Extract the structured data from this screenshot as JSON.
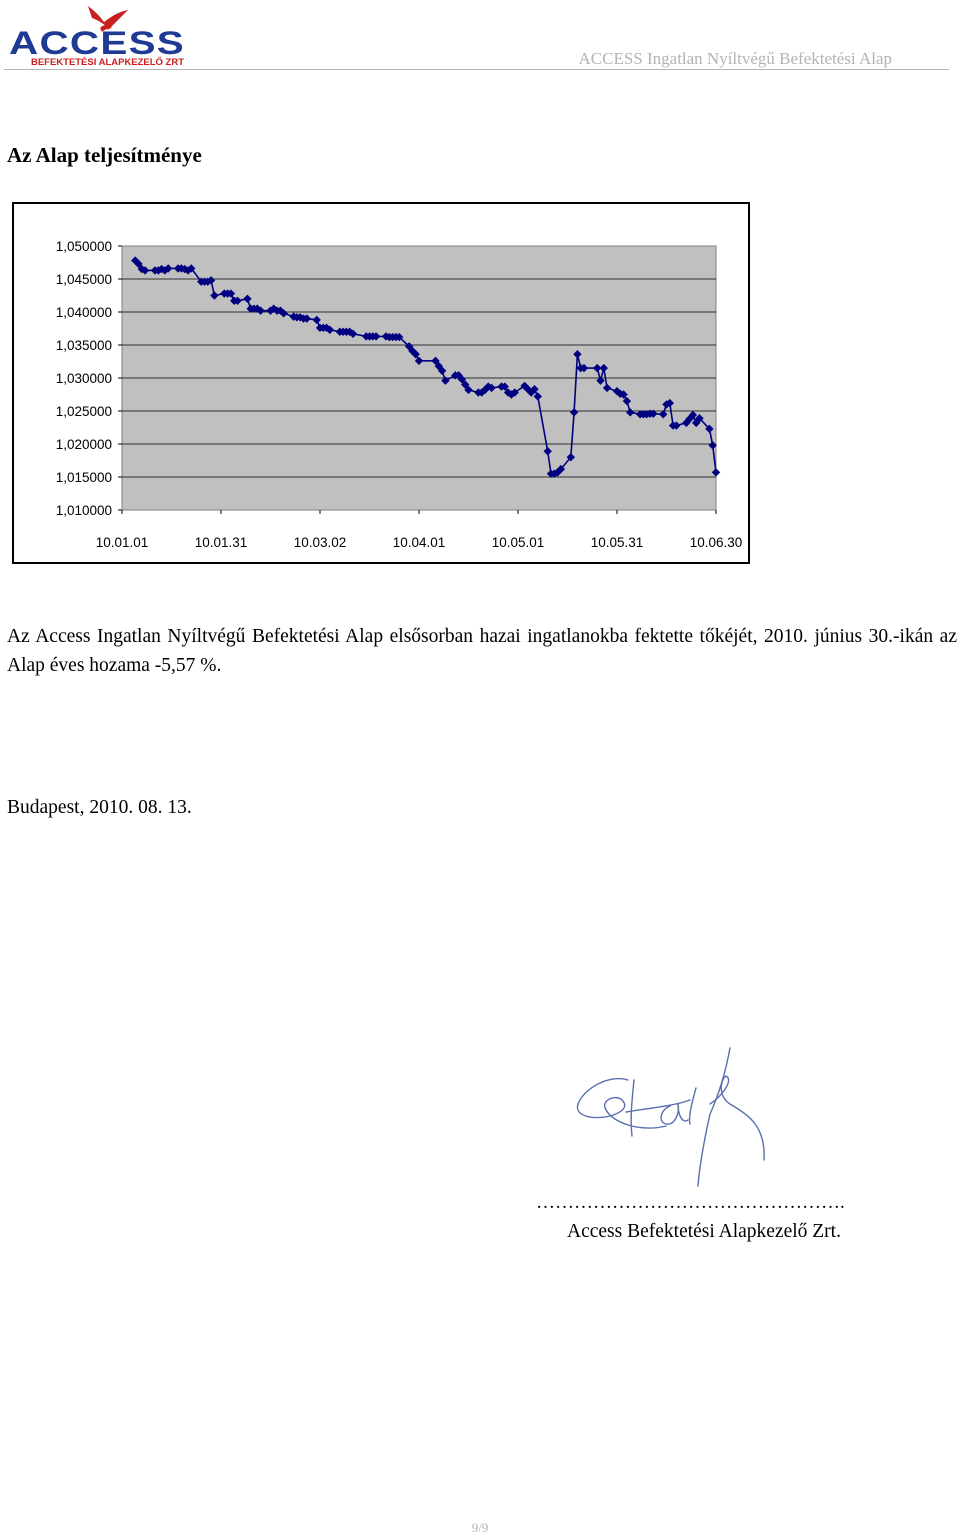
{
  "header": {
    "logo_text": "ACCESS",
    "logo_subtext": "BEFEKTETÉSI ALAPKEZELŐ ZRT",
    "title": "ACCESS Ingatlan Nyíltvégű Befektetési Alap"
  },
  "section_title": "Az Alap teljesítménye",
  "chart_data": {
    "type": "line",
    "title": "",
    "xlabel": "",
    "ylabel": "",
    "ylim": [
      1.01,
      1.05
    ],
    "xlim": [
      "2010-01-01",
      "2010-06-30"
    ],
    "y_tick_labels": [
      "1,050000",
      "1,045000",
      "1,040000",
      "1,035000",
      "1,030000",
      "1,025000",
      "1,020000",
      "1,015000",
      "1,010000"
    ],
    "y_ticks": [
      1.05,
      1.045,
      1.04,
      1.035,
      1.03,
      1.025,
      1.02,
      1.015,
      1.01
    ],
    "x_tick_labels": [
      "10.01.01",
      "10.01.31",
      "10.03.02",
      "10.04.01",
      "10.05.01",
      "10.05.31",
      "10.06.30"
    ],
    "x_ticks": [
      "2010-01-01",
      "2010-01-31",
      "2010-03-02",
      "2010-04-01",
      "2010-05-01",
      "2010-05-31",
      "2010-06-30"
    ],
    "grid": true,
    "legend": "none",
    "marker": "diamond",
    "line_color": "#000080",
    "plot_background": "#c0c0c0",
    "series": [
      {
        "x": [
          "2010-01-05",
          "2010-01-06",
          "2010-01-07",
          "2010-01-08",
          "2010-01-11",
          "2010-01-12",
          "2010-01-13",
          "2010-01-14",
          "2010-01-15",
          "2010-01-18",
          "2010-01-19",
          "2010-01-20",
          "2010-01-21",
          "2010-01-22",
          "2010-01-25",
          "2010-01-26",
          "2010-01-27",
          "2010-01-28",
          "2010-01-29",
          "2010-02-01",
          "2010-02-02",
          "2010-02-03",
          "2010-02-04",
          "2010-02-05",
          "2010-02-08",
          "2010-02-09",
          "2010-02-10",
          "2010-02-11",
          "2010-02-12",
          "2010-02-15",
          "2010-02-16",
          "2010-02-17",
          "2010-02-18",
          "2010-02-19",
          "2010-02-22",
          "2010-02-23",
          "2010-02-24",
          "2010-02-25",
          "2010-02-26",
          "2010-03-01",
          "2010-03-02",
          "2010-03-03",
          "2010-03-04",
          "2010-03-05",
          "2010-03-08",
          "2010-03-09",
          "2010-03-10",
          "2010-03-11",
          "2010-03-12",
          "2010-03-16",
          "2010-03-17",
          "2010-03-18",
          "2010-03-19",
          "2010-03-22",
          "2010-03-23",
          "2010-03-24",
          "2010-03-25",
          "2010-03-26",
          "2010-03-29",
          "2010-03-30",
          "2010-03-31",
          "2010-04-01",
          "2010-04-06",
          "2010-04-07",
          "2010-04-08",
          "2010-04-09",
          "2010-04-12",
          "2010-04-13",
          "2010-04-14",
          "2010-04-15",
          "2010-04-16",
          "2010-04-19",
          "2010-04-20",
          "2010-04-21",
          "2010-04-22",
          "2010-04-23",
          "2010-04-26",
          "2010-04-27",
          "2010-04-28",
          "2010-04-29",
          "2010-04-30",
          "2010-05-03",
          "2010-05-04",
          "2010-05-05",
          "2010-05-06",
          "2010-05-07",
          "2010-05-10",
          "2010-05-11",
          "2010-05-12",
          "2010-05-13",
          "2010-05-14",
          "2010-05-17",
          "2010-05-18",
          "2010-05-19",
          "2010-05-20",
          "2010-05-21",
          "2010-05-25",
          "2010-05-26",
          "2010-05-27",
          "2010-05-28",
          "2010-05-31",
          "2010-06-01",
          "2010-06-02",
          "2010-06-03",
          "2010-06-04",
          "2010-06-07",
          "2010-06-08",
          "2010-06-09",
          "2010-06-10",
          "2010-06-11",
          "2010-06-14",
          "2010-06-15",
          "2010-06-16",
          "2010-06-17",
          "2010-06-18",
          "2010-06-21",
          "2010-06-22",
          "2010-06-23",
          "2010-06-24",
          "2010-06-25",
          "2010-06-28",
          "2010-06-29",
          "2010-06-30"
        ],
        "y": [
          1.0478,
          1.0473,
          1.0465,
          1.0463,
          1.0463,
          1.0463,
          1.0465,
          1.0463,
          1.0466,
          1.0466,
          1.0466,
          1.0465,
          1.0463,
          1.0466,
          1.0446,
          1.0446,
          1.0446,
          1.0448,
          1.0425,
          1.0428,
          1.0428,
          1.0428,
          1.0417,
          1.0417,
          1.042,
          1.0405,
          1.0405,
          1.0405,
          1.0402,
          1.0402,
          1.0405,
          1.0402,
          1.0402,
          1.0398,
          1.0393,
          1.0392,
          1.0392,
          1.039,
          1.039,
          1.0388,
          1.0376,
          1.0376,
          1.0376,
          1.0373,
          1.037,
          1.037,
          1.037,
          1.037,
          1.0367,
          1.0363,
          1.0363,
          1.0363,
          1.0363,
          1.0363,
          1.0362,
          1.0362,
          1.0362,
          1.0362,
          1.0348,
          1.0341,
          1.0336,
          1.0326,
          1.0326,
          1.0318,
          1.0311,
          1.0296,
          1.0304,
          1.0304,
          1.0298,
          1.029,
          1.0282,
          1.0278,
          1.0278,
          1.0282,
          1.0287,
          1.0285,
          1.0287,
          1.0287,
          1.0278,
          1.0275,
          1.0278,
          1.0288,
          1.0283,
          1.0278,
          1.0283,
          1.0272,
          1.0189,
          1.0155,
          1.0155,
          1.0157,
          1.0162,
          1.018,
          1.0248,
          1.0336,
          1.0315,
          1.0315,
          1.0315,
          1.0296,
          1.0315,
          1.0285,
          1.028,
          1.0276,
          1.0275,
          1.0265,
          1.0248,
          1.0245,
          1.0245,
          1.0245,
          1.0246,
          1.0246,
          1.0245,
          1.026,
          1.0262,
          1.0228,
          1.0228,
          1.0232,
          1.0238,
          1.0244,
          1.0232,
          1.0239,
          1.0223,
          1.0198,
          1.0157
        ]
      }
    ]
  },
  "body_text": "Az Access Ingatlan Nyíltvégű Befektetési Alap elsősorban hazai ingatlanokba fektette tőkéjét, 2010. június 30.-ikán az Alap éves hozama -5,57 %.",
  "place_date": "Budapest, 2010. 08. 13.",
  "signature": {
    "dots": "………………………………………….",
    "name": "Access Befektetési Alapkezelő Zrt."
  },
  "page_number": "9/9"
}
